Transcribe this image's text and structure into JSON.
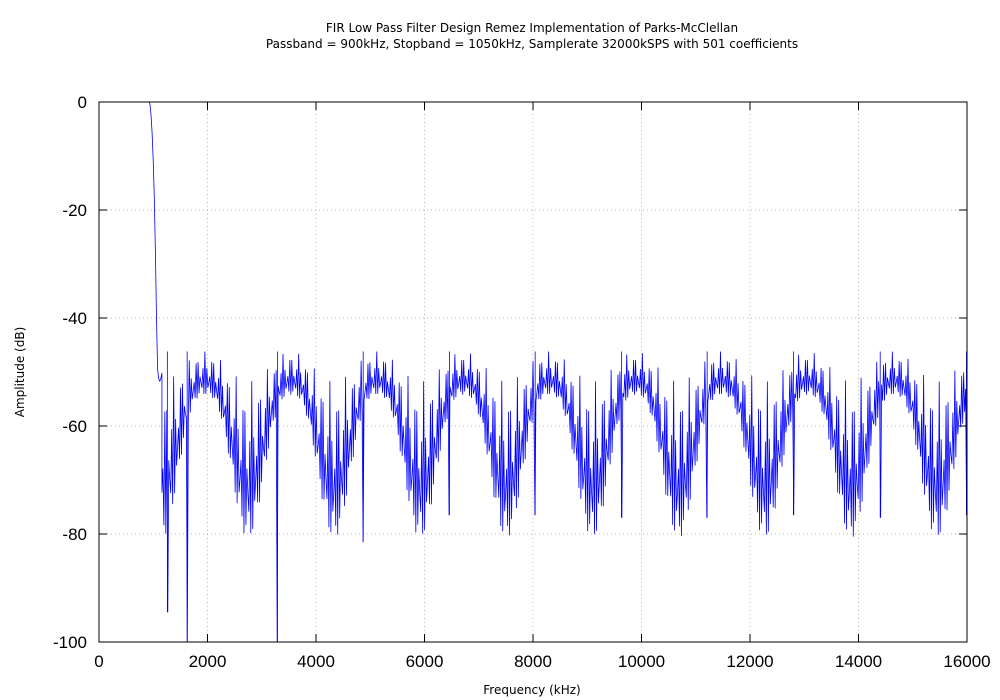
{
  "chart_data": {
    "type": "line",
    "title": "FIR Low Pass Filter Design Remez Implementation of Parks-McClellan",
    "subtitle": "Passband = 900kHz, Stopband = 1050kHz, Samplerate 32000kSPS with 501 coefficients",
    "xlabel": "Frequency (kHz)",
    "ylabel": "Amplitude (dB)",
    "xlim": [
      0,
      16000
    ],
    "ylim": [
      -100,
      0
    ],
    "x_ticks": [
      0,
      2000,
      4000,
      6000,
      8000,
      10000,
      12000,
      14000,
      16000
    ],
    "y_ticks": [
      0,
      -20,
      -40,
      -60,
      -80,
      -100
    ],
    "x_tick_labels": [
      "0",
      "2000",
      "4000",
      "6000",
      "8000",
      "10000",
      "12000",
      "14000",
      "16000"
    ],
    "y_tick_labels": [
      "0",
      "-20",
      "-40",
      "-60",
      "-80",
      "-100"
    ],
    "grid": true,
    "line_color": "#0000ff",
    "series": [
      {
        "type": "magnitude_response",
        "passband_db": 0,
        "passband_edge_khz": 900,
        "stopband_start_khz": 1050,
        "stopband_peak_db": -46.2,
        "stopband_envelope_peak_db": -49,
        "stopband_deep_nulls_db": [
          [
            1260,
            -94.5
          ],
          [
            1625,
            -100
          ],
          [
            3290,
            -100
          ],
          [
            4870,
            -81.5
          ],
          [
            6460,
            -76.5
          ],
          [
            8040,
            -76.5
          ],
          [
            9630,
            -77
          ],
          [
            11210,
            -77
          ],
          [
            12800,
            -76.5
          ],
          [
            14400,
            -77
          ],
          [
            15990,
            -76.5
          ]
        ]
      }
    ]
  }
}
